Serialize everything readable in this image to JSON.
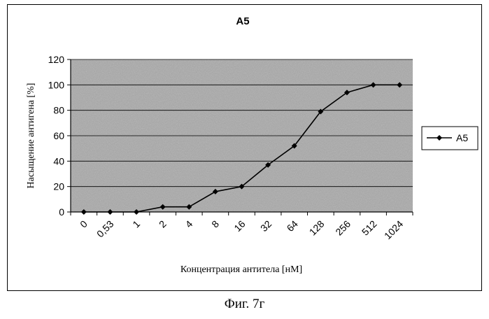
{
  "figure": {
    "caption": "Фиг. 7г"
  },
  "chart_data": {
    "type": "line",
    "title": "A5",
    "xlabel": "Концентрация антитела [нМ]",
    "ylabel": "Насыщение антигена [%]",
    "categories": [
      "0",
      "0,53",
      "1",
      "2",
      "4",
      "8",
      "16",
      "32",
      "64",
      "128",
      "256",
      "512",
      "1024"
    ],
    "series": [
      {
        "name": "A5",
        "values": [
          0,
          0,
          0,
          4,
          4,
          16,
          20,
          37,
          52,
          79,
          94,
          100,
          100
        ]
      }
    ],
    "ylim": [
      0,
      120
    ],
    "yticks": [
      0,
      20,
      40,
      60,
      80,
      100,
      120
    ],
    "grid": true,
    "legend": "right",
    "colors": {
      "plot_bg": "#a9a9a9",
      "line": "#000000",
      "grid": "#000000"
    }
  }
}
